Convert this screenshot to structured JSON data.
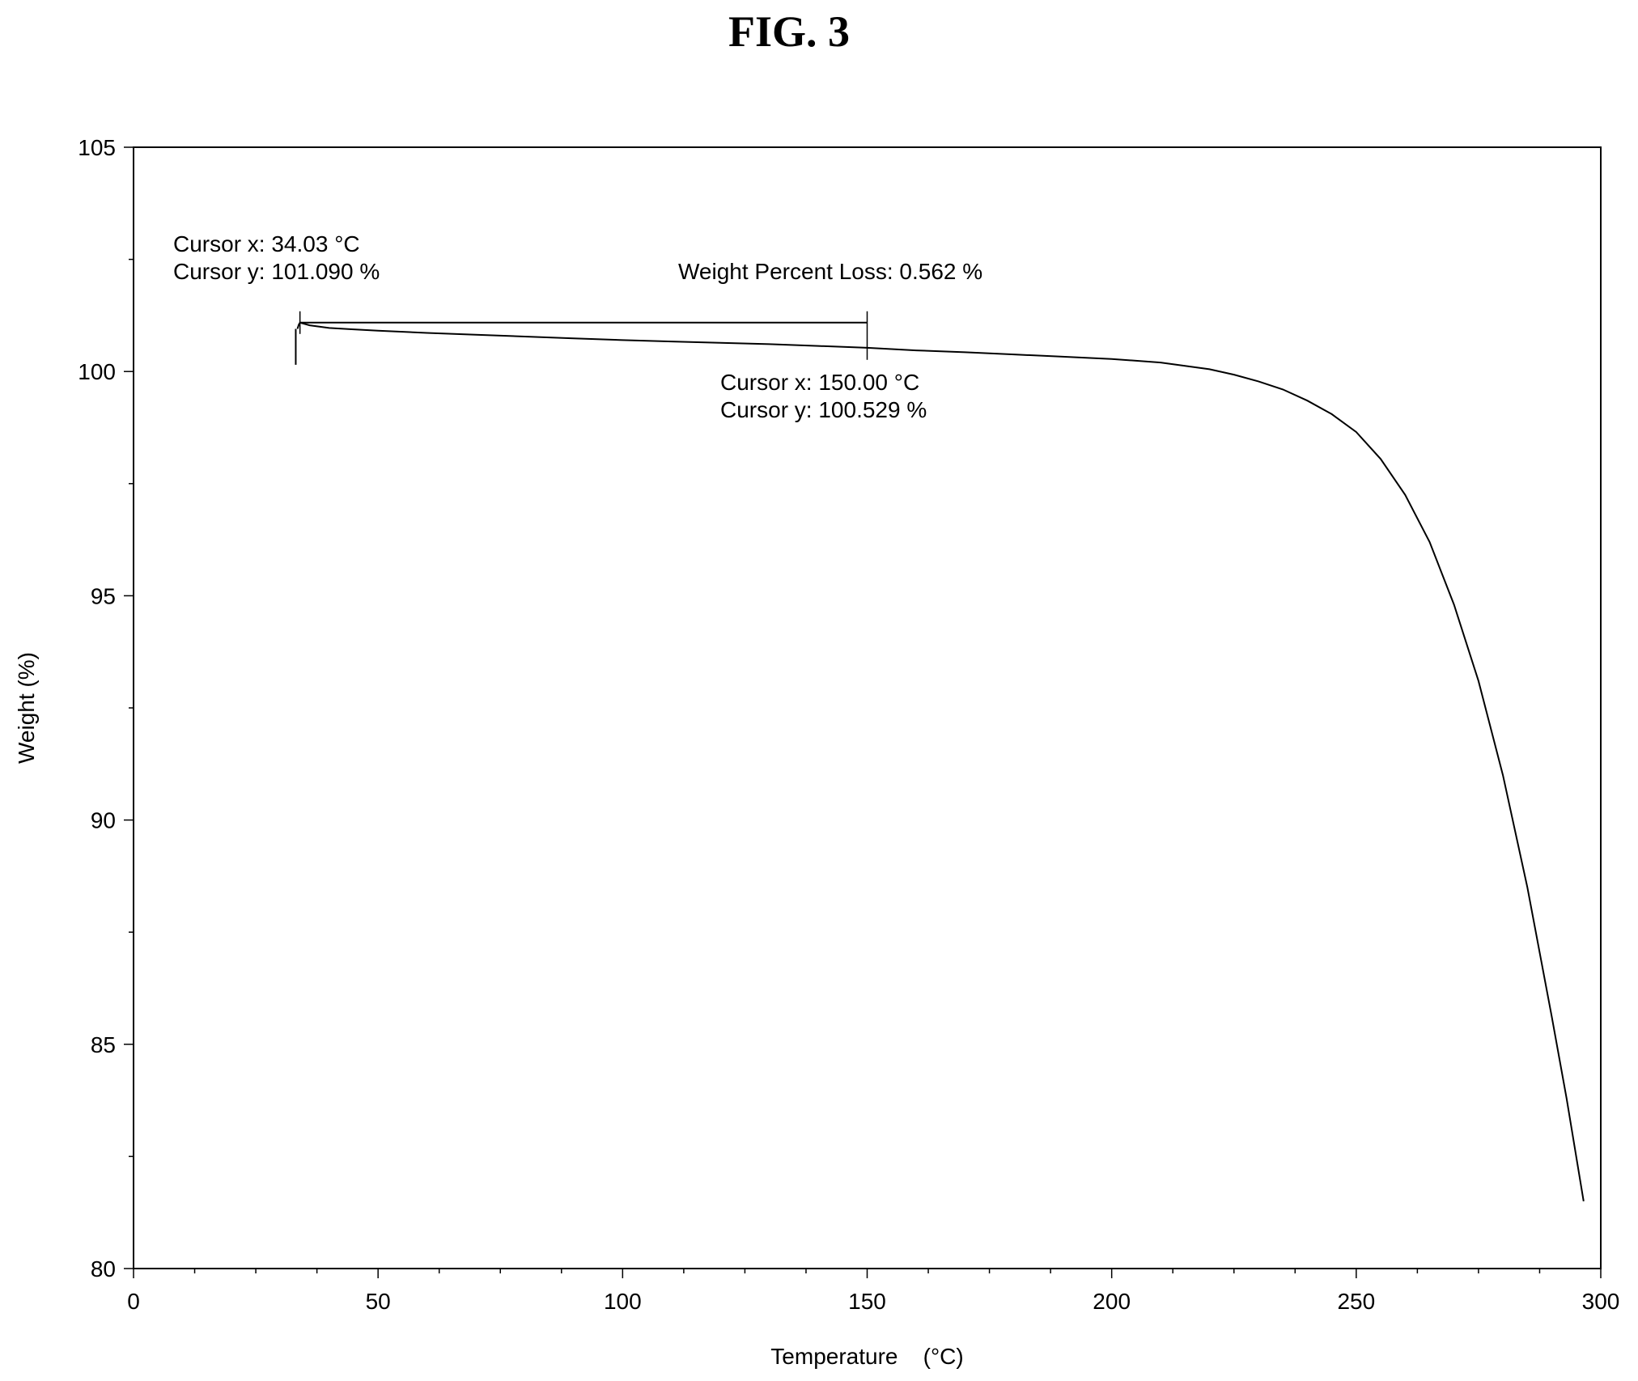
{
  "figure": {
    "title": "FIG. 3"
  },
  "chart_data": {
    "type": "line",
    "xlabel": "Temperature   (°C)",
    "ylabel": "Weight  (%)",
    "xlim": [
      0,
      300
    ],
    "ylim": [
      80,
      105
    ],
    "x_ticks": [
      0,
      50,
      100,
      150,
      200,
      250,
      300
    ],
    "y_ticks": [
      80,
      85,
      90,
      95,
      100,
      105
    ],
    "grid": false,
    "series": [
      {
        "x": [
          33.5,
          33.8,
          34.03,
          36,
          40,
          45,
          50,
          60,
          70,
          80,
          90,
          100,
          110,
          120,
          130,
          140,
          150,
          160,
          170,
          180,
          190,
          200,
          210,
          220,
          225,
          230,
          235,
          240,
          245,
          250,
          255,
          260,
          265,
          270,
          275,
          280,
          285,
          290,
          293,
          296.5
        ],
        "y": [
          100.95,
          101.05,
          101.09,
          101.03,
          100.97,
          100.94,
          100.91,
          100.86,
          100.82,
          100.78,
          100.74,
          100.7,
          100.67,
          100.64,
          100.61,
          100.57,
          100.529,
          100.47,
          100.43,
          100.38,
          100.33,
          100.28,
          100.2,
          100.05,
          99.93,
          99.78,
          99.6,
          99.35,
          99.05,
          98.65,
          98.05,
          97.25,
          96.2,
          94.8,
          93.1,
          91.0,
          88.5,
          85.6,
          83.8,
          81.5
        ]
      }
    ],
    "annotations": {
      "cursor1": {
        "x_label": "Cursor x: 34.03 °C",
        "y_label": "Cursor y: 101.090 %",
        "x": 34.03,
        "y": 101.09
      },
      "cursor2": {
        "x_label": "Cursor x: 150.00 °C",
        "y_label": "Cursor y: 100.529 %",
        "x": 150.0,
        "y": 100.529
      },
      "loss_label": "Weight Percent Loss: 0.562 %"
    }
  }
}
